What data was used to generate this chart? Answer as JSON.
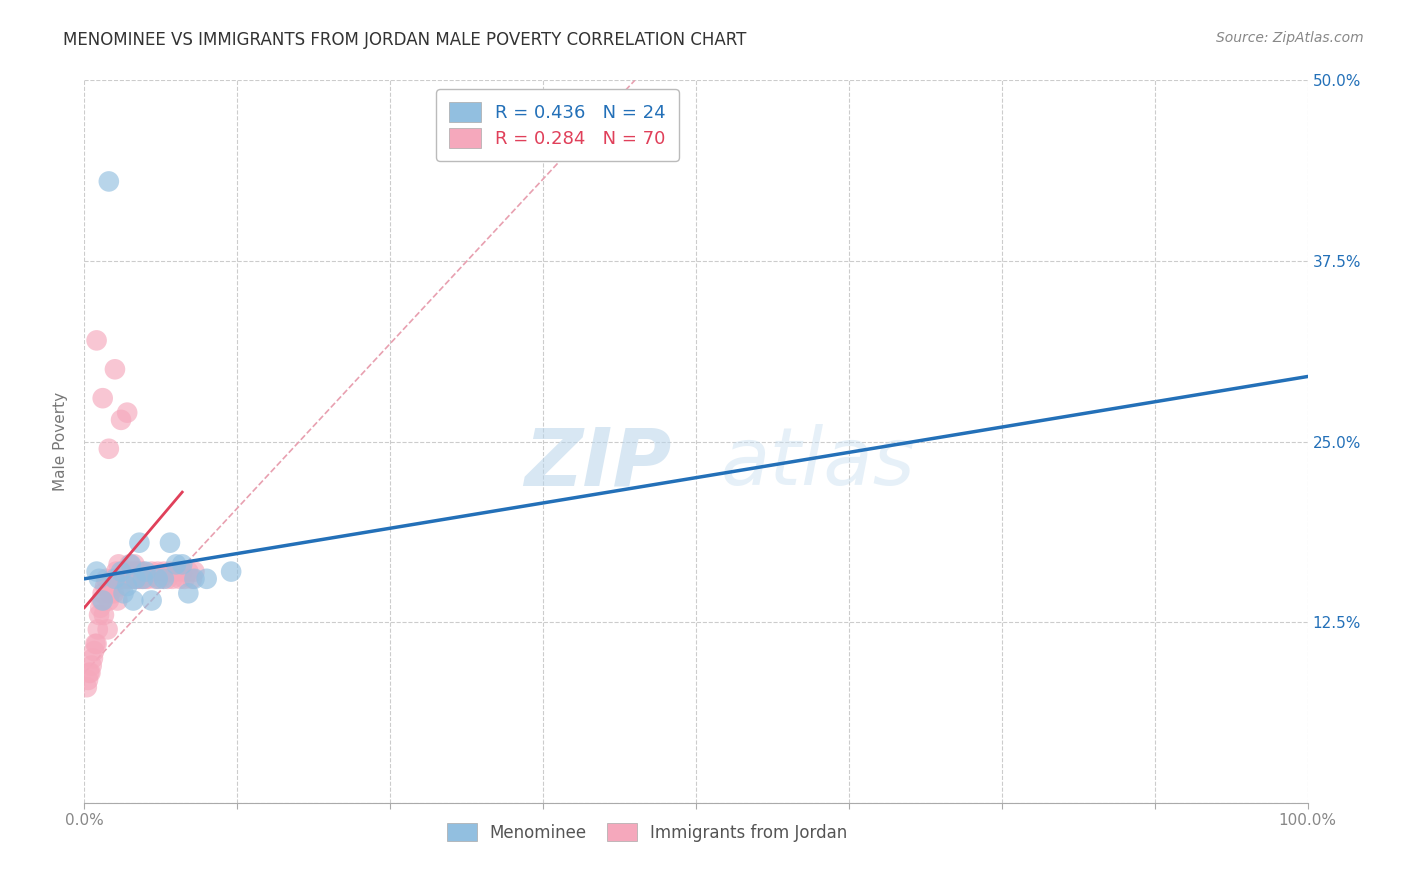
{
  "title": "MENOMINEE VS IMMIGRANTS FROM JORDAN MALE POVERTY CORRELATION CHART",
  "source": "Source: ZipAtlas.com",
  "ylabel": "Male Poverty",
  "legend_label_1": "Menominee",
  "legend_label_2": "Immigrants from Jordan",
  "R1": 0.436,
  "N1": 24,
  "R2": 0.284,
  "N2": 70,
  "color1": "#92bfe0",
  "color2": "#f5a8bc",
  "line_color1": "#2370b8",
  "line_color2": "#e0405a",
  "dashed_color": "#e8a0b0",
  "xlim": [
    0,
    1.0
  ],
  "ylim": [
    0,
    0.5
  ],
  "xticks": [
    0.0,
    0.125,
    0.25,
    0.375,
    0.5,
    0.625,
    0.75,
    0.875,
    1.0
  ],
  "xticklabels_shown": {
    "0.0": "0.0%",
    "1.0": "100.0%"
  },
  "yticks": [
    0.0,
    0.125,
    0.25,
    0.375,
    0.5
  ],
  "yticklabels_right": [
    "",
    "12.5%",
    "25.0%",
    "37.5%",
    "50.0%"
  ],
  "menominee_x": [
    0.01,
    0.012,
    0.015,
    0.02,
    0.025,
    0.03,
    0.032,
    0.035,
    0.038,
    0.04,
    0.042,
    0.045,
    0.048,
    0.05,
    0.055,
    0.06,
    0.065,
    0.07,
    0.075,
    0.08,
    0.085,
    0.09,
    0.1,
    0.12
  ],
  "menominee_y": [
    0.16,
    0.155,
    0.14,
    0.43,
    0.155,
    0.16,
    0.145,
    0.15,
    0.165,
    0.14,
    0.155,
    0.18,
    0.155,
    0.16,
    0.14,
    0.155,
    0.155,
    0.18,
    0.165,
    0.165,
    0.145,
    0.155,
    0.155,
    0.16
  ],
  "jordan_x": [
    0.002,
    0.003,
    0.004,
    0.005,
    0.006,
    0.007,
    0.008,
    0.009,
    0.01,
    0.011,
    0.012,
    0.013,
    0.014,
    0.015,
    0.016,
    0.017,
    0.018,
    0.019,
    0.02,
    0.021,
    0.022,
    0.023,
    0.024,
    0.025,
    0.026,
    0.027,
    0.028,
    0.029,
    0.03,
    0.031,
    0.032,
    0.033,
    0.034,
    0.035,
    0.036,
    0.037,
    0.038,
    0.039,
    0.04,
    0.041,
    0.042,
    0.043,
    0.044,
    0.045,
    0.046,
    0.047,
    0.048,
    0.05,
    0.052,
    0.055,
    0.058,
    0.06,
    0.062,
    0.065,
    0.068,
    0.07,
    0.072,
    0.075,
    0.078,
    0.08,
    0.082,
    0.085,
    0.088,
    0.09,
    0.01,
    0.015,
    0.02,
    0.025,
    0.03,
    0.035
  ],
  "jordan_y": [
    0.08,
    0.085,
    0.09,
    0.09,
    0.095,
    0.1,
    0.105,
    0.11,
    0.11,
    0.12,
    0.13,
    0.135,
    0.14,
    0.145,
    0.13,
    0.15,
    0.155,
    0.12,
    0.14,
    0.145,
    0.15,
    0.155,
    0.145,
    0.155,
    0.16,
    0.14,
    0.165,
    0.155,
    0.15,
    0.155,
    0.16,
    0.155,
    0.16,
    0.155,
    0.16,
    0.165,
    0.155,
    0.155,
    0.16,
    0.165,
    0.155,
    0.16,
    0.155,
    0.155,
    0.16,
    0.155,
    0.16,
    0.155,
    0.155,
    0.16,
    0.155,
    0.16,
    0.155,
    0.16,
    0.155,
    0.16,
    0.155,
    0.16,
    0.155,
    0.16,
    0.155,
    0.16,
    0.155,
    0.16,
    0.32,
    0.28,
    0.245,
    0.3,
    0.265,
    0.27
  ],
  "blue_line_x": [
    0.0,
    1.0
  ],
  "blue_line_y": [
    0.155,
    0.295
  ],
  "pink_line_x": [
    0.0,
    0.08
  ],
  "pink_line_y": [
    0.135,
    0.215
  ],
  "diag_line_x": [
    0.0,
    0.45
  ],
  "diag_line_y": [
    0.09,
    0.5
  ],
  "watermark_zip": "ZIP",
  "watermark_atlas": "atlas",
  "background_color": "#ffffff",
  "grid_color": "#cccccc",
  "title_color": "#333333",
  "source_color": "#888888",
  "axis_label_color": "#777777",
  "tick_color": "#888888"
}
